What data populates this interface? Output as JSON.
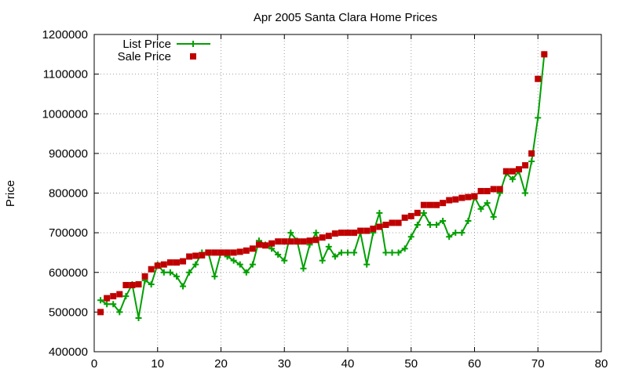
{
  "chart_data": {
    "type": "line",
    "title": "Apr 2005 Santa Clara Home Prices",
    "xlabel": "",
    "ylabel": "Price",
    "xlim": [
      0,
      80
    ],
    "ylim": [
      400000,
      1200000
    ],
    "xticks": [
      0,
      10,
      20,
      30,
      40,
      50,
      60,
      70,
      80
    ],
    "yticks": [
      400000,
      500000,
      600000,
      700000,
      800000,
      900000,
      1000000,
      1100000,
      1200000
    ],
    "grid": true,
    "legend_position": "top-left",
    "series": [
      {
        "name": "List Price",
        "style": "line-cross",
        "color": "#00a000",
        "x": [
          1,
          2,
          3,
          4,
          5,
          6,
          7,
          8,
          9,
          10,
          11,
          12,
          13,
          14,
          15,
          16,
          17,
          18,
          19,
          20,
          21,
          22,
          23,
          24,
          25,
          26,
          27,
          28,
          29,
          30,
          31,
          32,
          33,
          34,
          35,
          36,
          37,
          38,
          39,
          40,
          41,
          42,
          43,
          44,
          45,
          46,
          47,
          48,
          49,
          50,
          51,
          52,
          53,
          54,
          55,
          56,
          57,
          58,
          59,
          60,
          61,
          62,
          63,
          64,
          65,
          66,
          67,
          68,
          69,
          70,
          71
        ],
        "y": [
          530000,
          520000,
          520000,
          500000,
          540000,
          570000,
          485000,
          580000,
          570000,
          620000,
          600000,
          600000,
          590000,
          565000,
          600000,
          620000,
          650000,
          650000,
          590000,
          650000,
          640000,
          630000,
          620000,
          600000,
          620000,
          680000,
          670000,
          660000,
          645000,
          630000,
          700000,
          680000,
          610000,
          670000,
          700000,
          630000,
          665000,
          640000,
          650000,
          650000,
          650000,
          700000,
          620000,
          700000,
          750000,
          650000,
          650000,
          650000,
          660000,
          690000,
          720000,
          750000,
          720000,
          720000,
          730000,
          690000,
          700000,
          700000,
          730000,
          790000,
          760000,
          775000,
          740000,
          800000,
          850000,
          835000,
          855000,
          800000,
          880000,
          990000,
          1150000
        ]
      },
      {
        "name": "Sale Price",
        "style": "square-points",
        "color": "#c00000",
        "x": [
          1,
          2,
          3,
          4,
          5,
          6,
          7,
          8,
          9,
          10,
          11,
          12,
          13,
          14,
          15,
          16,
          17,
          18,
          19,
          20,
          21,
          22,
          23,
          24,
          25,
          26,
          27,
          28,
          29,
          30,
          31,
          32,
          33,
          34,
          35,
          36,
          37,
          38,
          39,
          40,
          41,
          42,
          43,
          44,
          45,
          46,
          47,
          48,
          49,
          50,
          51,
          52,
          53,
          54,
          55,
          56,
          57,
          58,
          59,
          60,
          61,
          62,
          63,
          64,
          65,
          66,
          67,
          68,
          69,
          70,
          71
        ],
        "y": [
          500000,
          535000,
          540000,
          545000,
          568000,
          568000,
          570000,
          590000,
          608000,
          617000,
          620000,
          625000,
          625000,
          628000,
          640000,
          642000,
          643000,
          650000,
          650000,
          650000,
          650000,
          650000,
          652000,
          655000,
          660000,
          670000,
          668000,
          673000,
          678000,
          678000,
          678000,
          678000,
          678000,
          680000,
          682000,
          688000,
          692000,
          698000,
          700000,
          700000,
          700000,
          705000,
          705000,
          710000,
          715000,
          720000,
          725000,
          725000,
          738000,
          742000,
          750000,
          770000,
          770000,
          770000,
          775000,
          782000,
          784000,
          788000,
          790000,
          792000,
          805000,
          805000,
          810000,
          810000,
          855000,
          855000,
          860000,
          870000,
          900000,
          1088000,
          1150000
        ]
      }
    ]
  }
}
